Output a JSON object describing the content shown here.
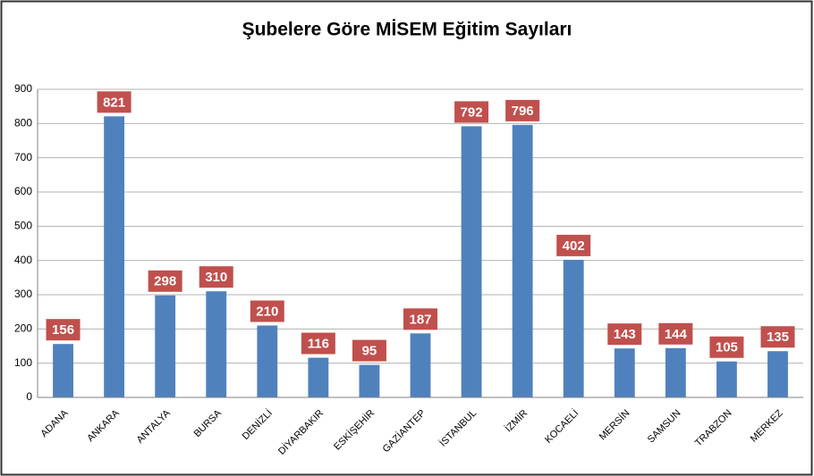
{
  "chart_data": {
    "type": "bar",
    "title": "Şubelere Göre MİSEM Eğitim Sayıları",
    "categories": [
      "ADANA",
      "ANKARA",
      "ANTALYA",
      "BURSA",
      "DENİZLİ",
      "DİYARBAKIR",
      "ESKİŞEHİR",
      "GAZİANTEP",
      "İSTANBUL",
      "İZMİR",
      "KOCAELİ",
      "MERSİN",
      "SAMSUN",
      "TRABZON",
      "MERKEZ"
    ],
    "values": [
      156,
      821,
      298,
      310,
      210,
      116,
      95,
      187,
      792,
      796,
      402,
      143,
      144,
      105,
      135
    ],
    "color": "#4f81bd",
    "label_color": "#c0504d",
    "ylim": [
      0,
      900
    ],
    "yticks": [
      0,
      100,
      200,
      300,
      400,
      500,
      600,
      700,
      800,
      900
    ],
    "grid": true
  }
}
